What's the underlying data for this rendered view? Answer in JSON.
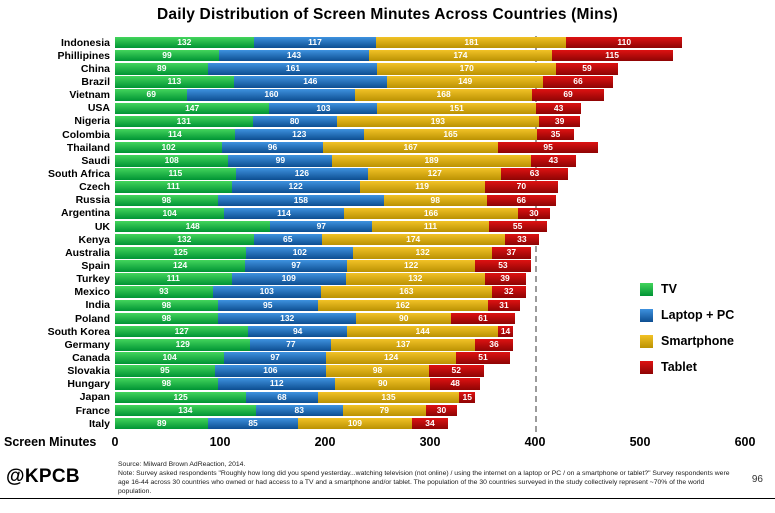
{
  "title": "Daily Distribution of Screen Minutes Across Countries (Mins)",
  "axis": {
    "label": "Screen Minutes",
    "ticks": [
      0,
      100,
      200,
      300,
      400,
      500,
      600
    ],
    "max": 600,
    "dashline_at": 400
  },
  "chart_data": {
    "type": "bar",
    "orientation": "horizontal",
    "stacked": true,
    "xmax": 600,
    "xlabel": "Screen Minutes",
    "title": "Daily Distribution of Screen Minutes Across Countries (Mins)",
    "legend_position": "right",
    "grid": "dashed line at 400 only",
    "categories": [
      "Indonesia",
      "Phillipines",
      "China",
      "Brazil",
      "Vietnam",
      "USA",
      "Nigeria",
      "Colombia",
      "Thailand",
      "Saudi",
      "South Africa",
      "Czech",
      "Russia",
      "Argentina",
      "UK",
      "Kenya",
      "Australia",
      "Spain",
      "Turkey",
      "Mexico",
      "India",
      "Poland",
      "South Korea",
      "Germany",
      "Canada",
      "Slovakia",
      "Hungary",
      "Japan",
      "France",
      "Italy"
    ],
    "series": [
      {
        "key": "tv",
        "name": "TV",
        "color": "#00A94F",
        "color_top": "#43D55C",
        "color_bottom": "#009434",
        "values": [
          132,
          99,
          89,
          113,
          69,
          147,
          131,
          114,
          102,
          108,
          115,
          111,
          98,
          104,
          148,
          132,
          125,
          124,
          111,
          93,
          98,
          98,
          127,
          129,
          104,
          95,
          98,
          125,
          134,
          89
        ]
      },
      {
        "key": "laptop-pc",
        "name": "Laptop + PC",
        "color": "#1565AE",
        "color_top": "#3E92DF",
        "color_bottom": "#0D4E91",
        "values": [
          117,
          143,
          161,
          146,
          160,
          103,
          80,
          123,
          96,
          99,
          126,
          122,
          158,
          114,
          97,
          65,
          102,
          97,
          109,
          103,
          95,
          132,
          94,
          77,
          97,
          106,
          112,
          68,
          83,
          85
        ]
      },
      {
        "key": "smartphone",
        "name": "Smartphone",
        "color": "#D2A106",
        "color_top": "#F2C226",
        "color_bottom": "#BB9202",
        "values": [
          181,
          174,
          170,
          149,
          168,
          151,
          193,
          165,
          167,
          189,
          127,
          119,
          98,
          166,
          111,
          174,
          132,
          122,
          132,
          163,
          162,
          90,
          144,
          137,
          124,
          98,
          90,
          135,
          79,
          109
        ]
      },
      {
        "key": "tablet",
        "name": "Tablet",
        "color": "#B50E0E",
        "color_top": "#DE1212",
        "color_bottom": "#8E0404",
        "values": [
          110,
          115,
          59,
          66,
          69,
          43,
          39,
          35,
          95,
          43,
          63,
          70,
          66,
          30,
          55,
          33,
          37,
          53,
          39,
          32,
          31,
          61,
          14,
          36,
          51,
          52,
          48,
          15,
          30,
          34
        ]
      }
    ]
  },
  "footer": {
    "logo": "@KPCB",
    "note": "Source: Milward Brown AdReaction, 2014.\nNote: Survey asked respondents \"Roughly how long did you spend yesterday...watching television (not online) / using the internet on a laptop or PC / on a smartphone or tablet?\" Survey respondents were age 16-44 across 30 countries who owned or had access to a TV and a smartphone and/or tablet. The population of the 30 countries surveyed in the study collectively represent ~70% of the world population.",
    "page": "96"
  }
}
